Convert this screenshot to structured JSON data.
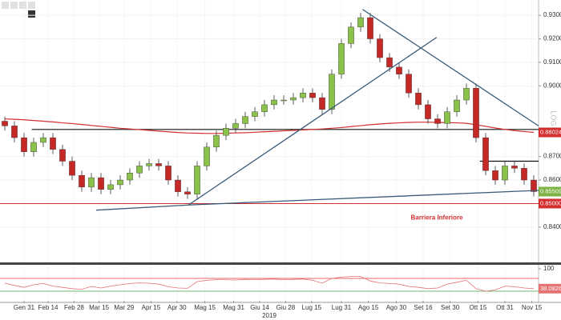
{
  "chart_data": {
    "type": "candlestick",
    "up_color": "#8bc34a",
    "down_color": "#c62828",
    "grid": true,
    "x": [
      0,
      1,
      2,
      3,
      4,
      5,
      6,
      7,
      8,
      9,
      10,
      11,
      12,
      13,
      14,
      15,
      16,
      17,
      18,
      19,
      20,
      21,
      22,
      23,
      24,
      25,
      26,
      27,
      28,
      29,
      30,
      31,
      32,
      33,
      34,
      35,
      36,
      37,
      38,
      39,
      40,
      41,
      42,
      43,
      44,
      45,
      46,
      47,
      48,
      49,
      50,
      51,
      52,
      53,
      54,
      55
    ],
    "open": [
      0.885,
      0.883,
      0.878,
      0.872,
      0.876,
      0.878,
      0.873,
      0.868,
      0.862,
      0.857,
      0.861,
      0.856,
      0.858,
      0.86,
      0.863,
      0.866,
      0.867,
      0.866,
      0.86,
      0.855,
      0.854,
      0.866,
      0.874,
      0.879,
      0.882,
      0.884,
      0.887,
      0.889,
      0.892,
      0.894,
      0.894,
      0.895,
      0.897,
      0.895,
      0.89,
      0.905,
      0.918,
      0.925,
      0.929,
      0.92,
      0.912,
      0.908,
      0.905,
      0.897,
      0.892,
      0.886,
      0.884,
      0.889,
      0.894,
      0.899,
      0.878,
      0.864,
      0.86,
      0.866,
      0.865,
      0.86
    ],
    "high": [
      0.887,
      0.885,
      0.88,
      0.878,
      0.88,
      0.88,
      0.875,
      0.87,
      0.864,
      0.863,
      0.863,
      0.86,
      0.862,
      0.865,
      0.868,
      0.869,
      0.869,
      0.868,
      0.862,
      0.857,
      0.868,
      0.876,
      0.881,
      0.884,
      0.886,
      0.889,
      0.891,
      0.894,
      0.896,
      0.896,
      0.897,
      0.899,
      0.899,
      0.897,
      0.907,
      0.92,
      0.927,
      0.931,
      0.931,
      0.922,
      0.914,
      0.91,
      0.907,
      0.899,
      0.894,
      0.888,
      0.891,
      0.896,
      0.901,
      0.901,
      0.88,
      0.866,
      0.868,
      0.868,
      0.867,
      0.862
    ],
    "low": [
      0.881,
      0.876,
      0.87,
      0.87,
      0.874,
      0.871,
      0.866,
      0.86,
      0.855,
      0.855,
      0.854,
      0.854,
      0.856,
      0.858,
      0.861,
      0.864,
      0.864,
      0.858,
      0.853,
      0.852,
      0.852,
      0.864,
      0.872,
      0.877,
      0.88,
      0.882,
      0.885,
      0.887,
      0.89,
      0.892,
      0.892,
      0.893,
      0.893,
      0.888,
      0.888,
      0.903,
      0.916,
      0.923,
      0.918,
      0.91,
      0.906,
      0.903,
      0.895,
      0.89,
      0.884,
      0.882,
      0.882,
      0.887,
      0.892,
      0.876,
      0.862,
      0.858,
      0.858,
      0.863,
      0.858,
      0.853
    ],
    "close": [
      0.883,
      0.878,
      0.872,
      0.876,
      0.878,
      0.873,
      0.868,
      0.862,
      0.857,
      0.861,
      0.856,
      0.858,
      0.86,
      0.863,
      0.866,
      0.867,
      0.866,
      0.86,
      0.855,
      0.854,
      0.866,
      0.874,
      0.879,
      0.882,
      0.884,
      0.887,
      0.889,
      0.892,
      0.894,
      0.894,
      0.895,
      0.897,
      0.895,
      0.89,
      0.905,
      0.918,
      0.925,
      0.929,
      0.92,
      0.912,
      0.908,
      0.905,
      0.897,
      0.892,
      0.886,
      0.884,
      0.889,
      0.894,
      0.899,
      0.878,
      0.864,
      0.86,
      0.866,
      0.865,
      0.86,
      0.85509
    ],
    "xlim": [
      -0.5,
      55.5
    ],
    "xticks": [
      {
        "value": 2,
        "label": "Gen 31"
      },
      {
        "value": 4.5,
        "label": "Feb 14"
      },
      {
        "value": 7.2,
        "label": "Feb 28"
      },
      {
        "value": 9.8,
        "label": "Mar 15"
      },
      {
        "value": 12.4,
        "label": "Mar 29"
      },
      {
        "value": 15.2,
        "label": "Apr 15"
      },
      {
        "value": 17.9,
        "label": "Apr 30"
      },
      {
        "value": 20.8,
        "label": "Mag 15"
      },
      {
        "value": 23.8,
        "label": "Mag 31"
      },
      {
        "value": 26.5,
        "label": "Giu 14"
      },
      {
        "value": 29.2,
        "label": "Giu 28"
      },
      {
        "value": 31.9,
        "label": "Lug 15"
      },
      {
        "value": 35,
        "label": "Lug 31"
      },
      {
        "value": 37.8,
        "label": "Ago 15"
      },
      {
        "value": 40.7,
        "label": "Ago 30"
      },
      {
        "value": 43.5,
        "label": "Set 16"
      },
      {
        "value": 46.3,
        "label": "Set 30"
      },
      {
        "value": 49.2,
        "label": "Ott 15"
      },
      {
        "value": 52,
        "label": "Ott 31"
      },
      {
        "value": 54.8,
        "label": "Nov 15"
      }
    ],
    "year_label": "2019",
    "ylim": [
      0.825,
      0.9365
    ],
    "yticks": [
      {
        "value": 0.84,
        "label": "0.84000"
      },
      {
        "value": 0.86,
        "label": "0.86000"
      },
      {
        "value": 0.87,
        "label": "0.87000"
      },
      {
        "value": 0.9,
        "label": "0.90000"
      },
      {
        "value": 0.91,
        "label": "0.91000"
      },
      {
        "value": 0.92,
        "label": "0.92000"
      },
      {
        "value": 0.93,
        "label": "0.93000"
      }
    ],
    "scale_label": "LOG",
    "moving_average": {
      "color": "#d32f2f",
      "values": [
        0.886,
        0.8858,
        0.8856,
        0.8853,
        0.885,
        0.8847,
        0.8843,
        0.884,
        0.8836,
        0.8832,
        0.8828,
        0.8824,
        0.882,
        0.8817,
        0.8814,
        0.8811,
        0.8808,
        0.8805,
        0.8802,
        0.88,
        0.8799,
        0.8798,
        0.8798,
        0.8799,
        0.88,
        0.8801,
        0.8803,
        0.8805,
        0.8807,
        0.8809,
        0.8811,
        0.8813,
        0.8815,
        0.8817,
        0.882,
        0.8823,
        0.8827,
        0.8831,
        0.8835,
        0.8838,
        0.8841,
        0.8843,
        0.8845,
        0.8846,
        0.8846,
        0.8845,
        0.8844,
        0.8843,
        0.8841,
        0.8835,
        0.8828,
        0.8821,
        0.8815,
        0.881,
        0.8806,
        0.88024
      ]
    },
    "barrier": {
      "value": 0.85,
      "label": "0.85000",
      "text": "Barriera Inferiore",
      "color": "#d32f2f"
    },
    "levels": [
      {
        "value": 0.8815,
        "from": 2.8,
        "to": 55.5
      },
      {
        "value": 0.868,
        "from": 49.4,
        "to": 55.5
      }
    ],
    "trendlines": [
      {
        "color": "#3a5a78",
        "points": [
          [
            9.5,
            0.8472
          ],
          [
            19.1,
            0.8494
          ],
          [
            55.5,
            0.8556
          ]
        ]
      },
      {
        "color": "#3a5a78",
        "points": [
          [
            19.1,
            0.8494
          ],
          [
            44.9,
            0.9206
          ]
        ]
      },
      {
        "color": "#3a5a78",
        "points": [
          [
            37.2,
            0.9325
          ],
          [
            55.5,
            0.883
          ]
        ]
      }
    ],
    "rsi": {
      "color": "#e57373",
      "ylim": [
        0,
        100
      ],
      "yticks": [
        100
      ],
      "upper": 70,
      "lower": 30,
      "values": [
        55,
        48,
        42,
        50,
        54,
        46,
        42,
        38,
        36,
        45,
        40,
        46,
        50,
        54,
        56,
        55,
        52,
        44,
        40,
        39,
        60,
        64,
        66,
        66,
        65,
        67,
        66,
        67,
        68,
        66,
        67,
        68,
        64,
        55,
        70,
        74,
        76,
        76,
        62,
        56,
        54,
        52,
        45,
        42,
        38,
        40,
        52,
        58,
        64,
        38,
        30,
        34,
        46,
        44,
        40,
        38.0826
      ]
    }
  }
}
